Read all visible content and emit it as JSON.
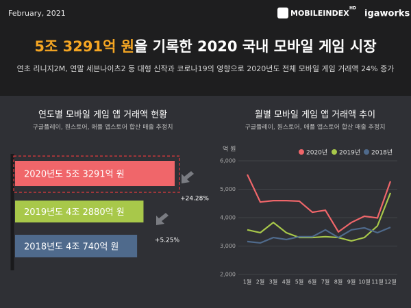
{
  "header": {
    "date": "February, 2021",
    "logo": "MOBILEINDEX",
    "logo_badge": "HD",
    "brand": "igaworks",
    "title_highlight": "5조 3291억 원",
    "title_rest": "을 기록한 2020 국내 모바일 게임 시장",
    "subtitle": "연초 리니지2M, 연말 세븐나이츠2 등 대형 신작과 코로나19의 영향으로 2020년도 전체 모바일 게임 거래액 24% 증가"
  },
  "chart_data": [
    {
      "type": "bar",
      "title": "연도별 모바일 게임 앱 거래액 현황",
      "subtitle": "구글플레이, 원스토어, 애플 앱스토어 합산 매출 추정치",
      "categories": [
        "2020년도",
        "2019년도",
        "2018년도"
      ],
      "values": [
        53291,
        42880,
        40740
      ],
      "value_labels": [
        "5조 3291억 원",
        "4조 2880억 원",
        "4조 740억 원"
      ],
      "colors": [
        "#f0666a",
        "#a8c84a",
        "#4f6a8c"
      ],
      "growth": {
        "values": [
          24.28,
          5.25
        ],
        "value_labels": [
          "+24.28%",
          "+5.25%"
        ]
      }
    },
    {
      "type": "line",
      "title": "월별 모바일 게임 앱 거래액 추이",
      "subtitle": "구글플레이, 원스토어, 애플 앱스토어 합산 매출 추정치",
      "y_label": "억 원",
      "categories": [
        "1월",
        "2월",
        "3월",
        "4월",
        "5월",
        "6월",
        "7월",
        "8월",
        "9월",
        "10월",
        "11월",
        "12월"
      ],
      "series": [
        {
          "name": "2020년",
          "color": "#f0666a",
          "values": [
            5520,
            4550,
            4600,
            4600,
            4580,
            4190,
            4260,
            3500,
            3830,
            4050,
            3990,
            5280
          ]
        },
        {
          "name": "2019년",
          "color": "#a8c84a",
          "values": [
            3570,
            3470,
            3830,
            3470,
            3300,
            3300,
            3330,
            3300,
            3180,
            3300,
            3710,
            4870
          ]
        },
        {
          "name": "2018년",
          "color": "#4f6a8c",
          "values": [
            3160,
            3110,
            3300,
            3230,
            3330,
            3330,
            3570,
            3300,
            3570,
            3640,
            3470,
            3660
          ]
        }
      ],
      "ylim": [
        2000,
        6000
      ],
      "yticks": [
        {
          "value": 2000,
          "label": "2,000"
        },
        {
          "value": 3000,
          "label": "3,000"
        },
        {
          "value": 4000,
          "label": "4,000"
        },
        {
          "value": 5000,
          "label": "5,000"
        },
        {
          "value": 6000,
          "label": "6,000"
        }
      ],
      "grid": true,
      "legend": "top-right"
    }
  ]
}
